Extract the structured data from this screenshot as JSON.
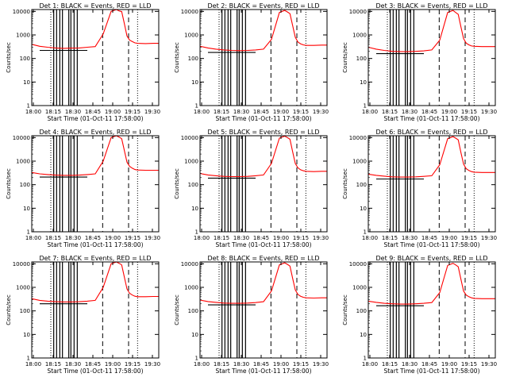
{
  "figure": {
    "background": "#ffffff",
    "event_color": "#000000",
    "lld_color": "#ff0000"
  },
  "chart_data": [
    {
      "type": "line",
      "title": "Det 1:  BLACK = Events, RED = LLD",
      "xlabel": "Start Time (01-Oct-11 17:58:00)",
      "ylabel": "Counts/sec",
      "x_ticks": [
        "18:00",
        "18:15",
        "18:30",
        "18:45",
        "19:00",
        "19:15",
        "19:30"
      ],
      "y_ticks": [
        "1",
        "10",
        "100",
        "1000",
        "10000"
      ],
      "ylim": [
        1,
        12000
      ],
      "xlim": [
        0,
        48
      ],
      "y_scale": "log",
      "series": [
        {
          "color": "#ff0000",
          "x": [
            0,
            3,
            6,
            9,
            12,
            15,
            18,
            21,
            24,
            27,
            30,
            32,
            33,
            34,
            35,
            36,
            37,
            38,
            39,
            40,
            43,
            46,
            48
          ],
          "y": [
            400,
            330,
            300,
            280,
            270,
            275,
            280,
            300,
            320,
            1100,
            10000,
            12000,
            10500,
            9800,
            3000,
            900,
            600,
            520,
            460,
            440,
            430,
            440,
            440
          ]
        },
        {
          "color": "#000000",
          "x": [
            3,
            6,
            9,
            12,
            15,
            18,
            21
          ],
          "y": [
            220,
            220,
            220,
            220,
            220,
            220,
            220
          ]
        }
      ]
    },
    {
      "type": "line",
      "title": "Det 2:  BLACK = Events, RED = LLD",
      "xlabel": "Start Time (01-Oct-11 17:58:00)",
      "ylabel": "Counts/sec",
      "x_ticks": [
        "18:00",
        "18:15",
        "18:30",
        "18:45",
        "19:00",
        "19:15",
        "19:30"
      ],
      "y_ticks": [
        "1",
        "10",
        "100",
        "1000",
        "10000"
      ],
      "ylim": [
        1,
        12000
      ],
      "xlim": [
        0,
        48
      ],
      "y_scale": "log",
      "series": [
        {
          "color": "#ff0000",
          "x": [
            0,
            3,
            6,
            9,
            12,
            15,
            18,
            21,
            24,
            27,
            30,
            32,
            33,
            34,
            35,
            36,
            37,
            38,
            39,
            40,
            43,
            46,
            48
          ],
          "y": [
            330,
            280,
            250,
            230,
            220,
            215,
            220,
            230,
            250,
            650,
            9000,
            11000,
            9500,
            8000,
            2500,
            800,
            500,
            420,
            380,
            360,
            360,
            370,
            370
          ]
        },
        {
          "color": "#000000",
          "x": [
            3,
            6,
            9,
            12,
            15,
            18,
            21
          ],
          "y": [
            180,
            180,
            180,
            180,
            180,
            180,
            180
          ]
        }
      ]
    },
    {
      "type": "line",
      "title": "Det 3:  BLACK = Events, RED = LLD",
      "xlabel": "Start Time (01-Oct-11 17:58:00)",
      "ylabel": "Counts/sec",
      "x_ticks": [
        "18:00",
        "18:15",
        "18:30",
        "18:45",
        "19:00",
        "19:15",
        "19:30"
      ],
      "y_ticks": [
        "1",
        "10",
        "100",
        "1000",
        "10000"
      ],
      "ylim": [
        1,
        12000
      ],
      "xlim": [
        0,
        48
      ],
      "y_scale": "log",
      "series": [
        {
          "color": "#ff0000",
          "x": [
            0,
            3,
            6,
            9,
            12,
            15,
            18,
            21,
            24,
            27,
            30,
            32,
            33,
            34,
            35,
            36,
            37,
            38,
            39,
            40,
            43,
            46,
            48
          ],
          "y": [
            300,
            250,
            220,
            200,
            195,
            195,
            200,
            210,
            230,
            600,
            9000,
            11000,
            9000,
            7500,
            2200,
            700,
            450,
            380,
            340,
            330,
            320,
            320,
            320
          ]
        },
        {
          "color": "#000000",
          "x": [
            3,
            6,
            9,
            12,
            15,
            18,
            21
          ],
          "y": [
            160,
            160,
            160,
            160,
            160,
            160,
            160
          ]
        }
      ]
    },
    {
      "type": "line",
      "title": "Det 4:  BLACK = Events, RED = LLD",
      "xlabel": "Start Time (01-Oct-11 17:58:00)",
      "ylabel": "Counts/sec",
      "x_ticks": [
        "18:00",
        "18:15",
        "18:30",
        "18:45",
        "19:00",
        "19:15",
        "19:30"
      ],
      "y_ticks": [
        "1",
        "10",
        "100",
        "1000",
        "10000"
      ],
      "ylim": [
        1,
        12000
      ],
      "xlim": [
        0,
        48
      ],
      "y_scale": "log",
      "series": [
        {
          "color": "#ff0000",
          "x": [
            0,
            3,
            6,
            9,
            12,
            15,
            18,
            21,
            24,
            27,
            30,
            32,
            33,
            34,
            35,
            36,
            37,
            38,
            39,
            40,
            43,
            46,
            48
          ],
          "y": [
            330,
            290,
            270,
            255,
            250,
            250,
            255,
            270,
            290,
            1000,
            10000,
            12000,
            10500,
            9000,
            2800,
            900,
            600,
            500,
            440,
            420,
            410,
            410,
            410
          ]
        },
        {
          "color": "#000000",
          "x": [
            3,
            6,
            9,
            12,
            15,
            18,
            21
          ],
          "y": [
            210,
            210,
            210,
            210,
            210,
            210,
            210
          ]
        }
      ]
    },
    {
      "type": "line",
      "title": "Det 5:  BLACK = Events, RED = LLD",
      "xlabel": "Start Time (01-Oct-11 17:58:00)",
      "ylabel": "Counts/sec",
      "x_ticks": [
        "18:00",
        "18:15",
        "18:30",
        "18:45",
        "19:00",
        "19:15",
        "19:30"
      ],
      "y_ticks": [
        "1",
        "10",
        "100",
        "1000",
        "10000"
      ],
      "ylim": [
        1,
        12000
      ],
      "xlim": [
        0,
        48
      ],
      "y_scale": "log",
      "series": [
        {
          "color": "#ff0000",
          "x": [
            0,
            3,
            6,
            9,
            12,
            15,
            18,
            21,
            24,
            27,
            30,
            32,
            33,
            34,
            35,
            36,
            37,
            38,
            39,
            40,
            43,
            46,
            48
          ],
          "y": [
            300,
            260,
            240,
            225,
            220,
            220,
            225,
            240,
            260,
            800,
            9500,
            11500,
            10000,
            8500,
            2500,
            800,
            520,
            430,
            390,
            370,
            360,
            370,
            370
          ]
        },
        {
          "color": "#000000",
          "x": [
            3,
            6,
            9,
            12,
            15,
            18,
            21
          ],
          "y": [
            190,
            190,
            190,
            190,
            190,
            190,
            190
          ]
        }
      ]
    },
    {
      "type": "line",
      "title": "Det 6:  BLACK = Events, RED = LLD",
      "xlabel": "Start Time (01-Oct-11 17:58:00)",
      "ylabel": "Counts/sec",
      "x_ticks": [
        "18:00",
        "18:15",
        "18:30",
        "18:45",
        "19:00",
        "19:15",
        "19:30"
      ],
      "y_ticks": [
        "1",
        "10",
        "100",
        "1000",
        "10000"
      ],
      "ylim": [
        1,
        12000
      ],
      "xlim": [
        0,
        48
      ],
      "y_scale": "log",
      "series": [
        {
          "color": "#ff0000",
          "x": [
            0,
            3,
            6,
            9,
            12,
            15,
            18,
            21,
            24,
            27,
            30,
            32,
            33,
            34,
            35,
            36,
            37,
            38,
            39,
            40,
            43,
            46,
            48
          ],
          "y": [
            280,
            250,
            230,
            215,
            210,
            210,
            215,
            225,
            240,
            700,
            9000,
            11000,
            9500,
            8000,
            2300,
            750,
            480,
            400,
            360,
            340,
            330,
            330,
            330
          ]
        },
        {
          "color": "#000000",
          "x": [
            3,
            6,
            9,
            12,
            15,
            18,
            21
          ],
          "y": [
            175,
            175,
            175,
            175,
            175,
            175,
            175
          ]
        }
      ]
    },
    {
      "type": "line",
      "title": "Det 7:  BLACK = Events, RED = LLD",
      "xlabel": "Start Time (01-Oct-11 17:58:00)",
      "ylabel": "Counts/sec",
      "x_ticks": [
        "18:00",
        "18:15",
        "18:30",
        "18:45",
        "19:00",
        "19:15",
        "19:30"
      ],
      "y_ticks": [
        "1",
        "10",
        "100",
        "1000",
        "10000"
      ],
      "ylim": [
        1,
        12000
      ],
      "xlim": [
        0,
        48
      ],
      "y_scale": "log",
      "series": [
        {
          "color": "#ff0000",
          "x": [
            0,
            3,
            6,
            9,
            12,
            15,
            18,
            21,
            24,
            27,
            30,
            32,
            33,
            34,
            35,
            36,
            37,
            38,
            39,
            40,
            43,
            46,
            48
          ],
          "y": [
            330,
            280,
            260,
            245,
            240,
            240,
            245,
            260,
            280,
            1000,
            10000,
            12000,
            10500,
            9000,
            2700,
            850,
            560,
            470,
            420,
            400,
            400,
            410,
            410
          ]
        },
        {
          "color": "#000000",
          "x": [
            3,
            6,
            9,
            12,
            15,
            18,
            21
          ],
          "y": [
            200,
            200,
            200,
            200,
            200,
            200,
            200
          ]
        }
      ]
    },
    {
      "type": "line",
      "title": "Det 8:  BLACK = Events, RED = LLD",
      "xlabel": "Start Time (01-Oct-11 17:58:00)",
      "ylabel": "Counts/sec",
      "x_ticks": [
        "18:00",
        "18:15",
        "18:30",
        "18:45",
        "19:00",
        "19:15",
        "19:30"
      ],
      "y_ticks": [
        "1",
        "10",
        "100",
        "1000",
        "10000"
      ],
      "ylim": [
        1,
        12000
      ],
      "xlim": [
        0,
        48
      ],
      "y_scale": "log",
      "series": [
        {
          "color": "#ff0000",
          "x": [
            0,
            3,
            6,
            9,
            12,
            15,
            18,
            21,
            24,
            27,
            30,
            32,
            33,
            34,
            35,
            36,
            37,
            38,
            39,
            40,
            43,
            46,
            48
          ],
          "y": [
            290,
            250,
            230,
            215,
            210,
            210,
            215,
            225,
            245,
            700,
            9000,
            11000,
            9500,
            8000,
            2400,
            780,
            500,
            420,
            380,
            360,
            350,
            360,
            360
          ]
        },
        {
          "color": "#000000",
          "x": [
            3,
            6,
            9,
            12,
            15,
            18,
            21
          ],
          "y": [
            180,
            180,
            180,
            180,
            180,
            180,
            180
          ]
        }
      ]
    },
    {
      "type": "line",
      "title": "Det 9:  BLACK = Events, RED = LLD",
      "xlabel": "Start Time (01-Oct-11 17:58:00)",
      "ylabel": "Counts/sec",
      "x_ticks": [
        "18:00",
        "18:15",
        "18:30",
        "18:45",
        "19:00",
        "19:15",
        "19:30"
      ],
      "y_ticks": [
        "1",
        "10",
        "100",
        "1000",
        "10000"
      ],
      "ylim": [
        1,
        12000
      ],
      "xlim": [
        0,
        48
      ],
      "y_scale": "log",
      "series": [
        {
          "color": "#ff0000",
          "x": [
            0,
            3,
            6,
            9,
            12,
            15,
            18,
            21,
            24,
            27,
            30,
            32,
            33,
            34,
            35,
            36,
            37,
            38,
            39,
            40,
            43,
            46,
            48
          ],
          "y": [
            260,
            230,
            210,
            200,
            195,
            195,
            200,
            210,
            225,
            600,
            8500,
            10500,
            9000,
            7500,
            2200,
            700,
            470,
            400,
            360,
            340,
            330,
            330,
            330
          ]
        },
        {
          "color": "#000000",
          "x": [
            3,
            6,
            9,
            12,
            15,
            18,
            21
          ],
          "y": [
            165,
            165,
            165,
            165,
            165,
            165,
            165
          ]
        }
      ]
    }
  ]
}
